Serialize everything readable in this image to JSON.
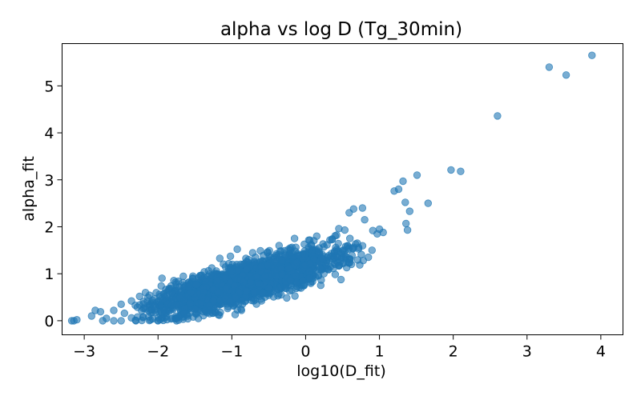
{
  "chart_data": {
    "type": "scatter",
    "title": "alpha vs log D (Tg_30min)",
    "xlabel": "log10(D_fit)",
    "ylabel": "alpha_fit",
    "xlim": [
      -3.3,
      4.3
    ],
    "ylim": [
      -0.3,
      5.9
    ],
    "xticks": [
      -3,
      -2,
      -1,
      0,
      1,
      2,
      3,
      4
    ],
    "yticks": [
      0,
      1,
      2,
      3,
      4,
      5
    ],
    "xtick_labels": [
      "−3",
      "−2",
      "−1",
      "0",
      "1",
      "2",
      "3",
      "4"
    ],
    "ytick_labels": [
      "0",
      "1",
      "2",
      "3",
      "4",
      "5"
    ],
    "grid": false,
    "marker_color": "#1f77b4",
    "marker_opacity": 0.6,
    "points": [
      [
        3.88,
        5.65
      ],
      [
        3.3,
        5.4
      ],
      [
        3.53,
        5.23
      ],
      [
        2.6,
        4.36
      ],
      [
        1.97,
        3.21
      ],
      [
        2.1,
        3.18
      ],
      [
        1.51,
        3.1
      ],
      [
        1.32,
        2.97
      ],
      [
        1.26,
        2.8
      ],
      [
        1.2,
        2.76
      ],
      [
        1.35,
        2.52
      ],
      [
        1.66,
        2.5
      ],
      [
        1.41,
        2.33
      ],
      [
        0.65,
        2.38
      ],
      [
        0.59,
        2.3
      ],
      [
        0.77,
        2.4
      ],
      [
        1.36,
        2.07
      ],
      [
        1.38,
        1.93
      ],
      [
        0.8,
        2.15
      ],
      [
        0.91,
        1.92
      ],
      [
        0.97,
        1.85
      ],
      [
        1.05,
        1.88
      ],
      [
        1.0,
        1.95
      ],
      [
        0.53,
        1.93
      ],
      [
        0.6,
        1.75
      ],
      [
        0.7,
        1.65
      ],
      [
        0.45,
        1.96
      ],
      [
        0.42,
        1.82
      ],
      [
        0.33,
        1.72
      ],
      [
        0.15,
        1.8
      ],
      [
        0.62,
        1.2
      ],
      [
        0.78,
        1.28
      ],
      [
        0.08,
        1.6
      ],
      [
        -0.15,
        1.75
      ],
      [
        -0.36,
        1.6
      ],
      [
        -0.52,
        1.45
      ],
      [
        -0.68,
        1.35
      ],
      [
        -0.85,
        1.2
      ],
      [
        -0.63,
        0.78
      ],
      [
        -0.32,
        0.99
      ],
      [
        -0.9,
        0.6
      ],
      [
        -1.03,
        0.4
      ],
      [
        -1.25,
        0.42
      ],
      [
        -1.5,
        0.25
      ],
      [
        -1.65,
        0.15
      ],
      [
        -1.72,
        0.08
      ],
      [
        -1.76,
        0.82
      ],
      [
        -1.98,
        0.56
      ],
      [
        -1.6,
        0.1
      ],
      [
        -2.17,
        0.6
      ],
      [
        -2.25,
        0.52
      ],
      [
        -2.36,
        0.42
      ],
      [
        -2.5,
        0.35
      ],
      [
        -2.6,
        0.22
      ],
      [
        -2.78,
        0.19
      ],
      [
        -2.85,
        0.22
      ],
      [
        -2.7,
        0.05
      ],
      [
        -2.9,
        0.1
      ],
      [
        -2.75,
        0.0
      ],
      [
        -2.6,
        0.0
      ],
      [
        -3.14,
        0.0
      ],
      [
        -3.1,
        0.02
      ],
      [
        -3.17,
        0.0
      ],
      [
        -2.3,
        0.0
      ],
      [
        -2.5,
        0.0
      ],
      [
        -2.0,
        0.0
      ],
      [
        -1.75,
        0.0
      ],
      [
        -1.3,
        0.15
      ],
      [
        -1.05,
        0.3
      ],
      [
        -0.95,
        0.5
      ],
      [
        -0.7,
        0.6
      ],
      [
        -0.5,
        0.7
      ],
      [
        -0.4,
        0.65
      ],
      [
        -0.2,
        0.85
      ],
      [
        0.2,
        1.1
      ],
      [
        0.4,
        1.2
      ],
      [
        0.9,
        1.5
      ],
      [
        0.85,
        1.35
      ],
      [
        -2.05,
        0.3
      ],
      [
        -1.85,
        0.2
      ],
      [
        -1.55,
        0.6
      ],
      [
        -1.4,
        0.5
      ],
      [
        -1.2,
        0.85
      ],
      [
        -1.0,
        1.05
      ],
      [
        -0.8,
        1.1
      ],
      [
        -0.6,
        1.15
      ],
      [
        -0.1,
        1.4
      ],
      [
        0.05,
        1.05
      ]
    ],
    "cluster": {
      "x_range": [
        -2.6,
        0.95
      ],
      "slope": 0.43,
      "intercept_at_0": 1.16,
      "spread": 0.2,
      "count": 2200
    }
  }
}
